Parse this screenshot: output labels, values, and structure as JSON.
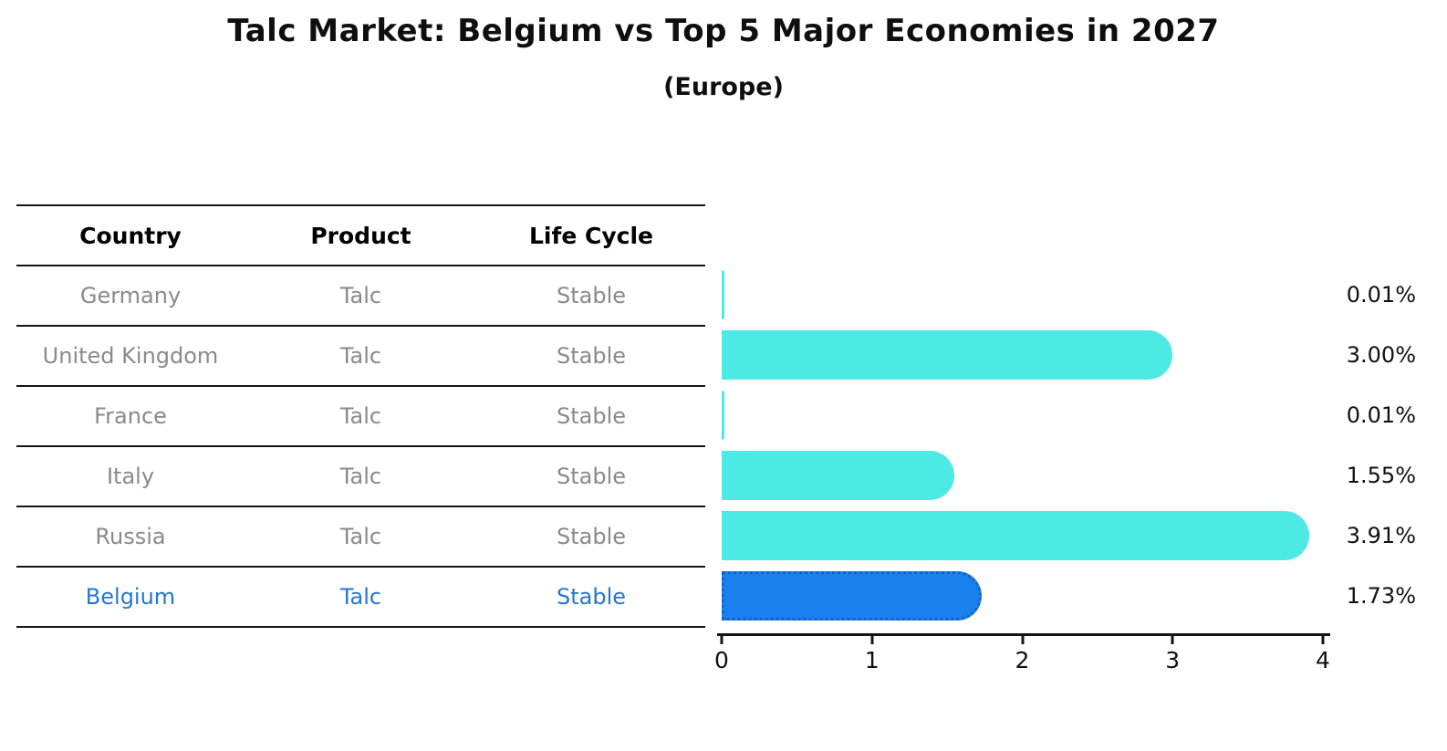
{
  "title": "Talc Market: Belgium vs Top 5 Major Economies in 2027",
  "subtitle": "(Europe)",
  "table": {
    "headers": {
      "country": "Country",
      "product": "Product",
      "life_cycle": "Life Cycle"
    },
    "rows": [
      {
        "country": "Germany",
        "product": "Talc",
        "life_cycle": "Stable",
        "highlighted": false
      },
      {
        "country": "United Kingdom",
        "product": "Talc",
        "life_cycle": "Stable",
        "highlighted": false
      },
      {
        "country": "France",
        "product": "Talc",
        "life_cycle": "Stable",
        "highlighted": false
      },
      {
        "country": "Italy",
        "product": "Talc",
        "life_cycle": "Stable",
        "highlighted": false
      },
      {
        "country": "Russia",
        "product": "Talc",
        "life_cycle": "Stable",
        "highlighted": false
      },
      {
        "country": "Belgium",
        "product": "Talc",
        "life_cycle": "Stable",
        "highlighted": true
      }
    ]
  },
  "chart_data": {
    "type": "bar",
    "orientation": "horizontal",
    "title": "Talc Market: Belgium vs Top 5 Major Economies in 2027",
    "subtitle": "(Europe)",
    "categories": [
      "Germany",
      "United Kingdom",
      "France",
      "Italy",
      "Russia",
      "Belgium"
    ],
    "values": [
      0.01,
      3.0,
      0.01,
      1.55,
      3.91,
      1.73
    ],
    "value_labels": [
      "0.01%",
      "3.00%",
      "0.01%",
      "1.55%",
      "3.91%",
      "1.73%"
    ],
    "highlight_category": "Belgium",
    "xlim": [
      0,
      4
    ],
    "x_ticks": [
      0,
      1,
      2,
      3,
      4
    ],
    "grid": false,
    "legend": "none",
    "colors": {
      "bar": "#4DE9E4",
      "highlight_bar": "#1A80EE",
      "highlight_border": "#1565C8",
      "highlight_text": "#2577CE",
      "row_text": "#8A8A8A",
      "header_text": "#000000",
      "axis": "#141414"
    }
  }
}
